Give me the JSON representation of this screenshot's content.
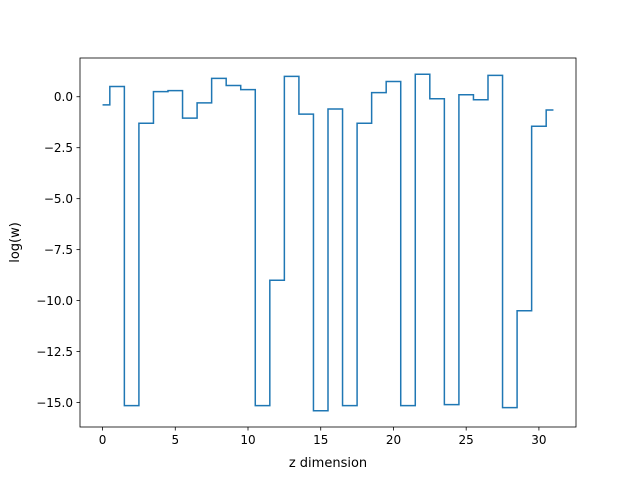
{
  "chart_data": {
    "type": "line",
    "drawstyle": "steps-mid",
    "title": "",
    "xlabel": "z dimension",
    "ylabel": "log(w)",
    "xlim": [
      -1.55,
      32.55
    ],
    "ylim": [
      -16.2,
      1.9
    ],
    "xticks": [
      0,
      5,
      10,
      15,
      20,
      25,
      30
    ],
    "xtick_labels": [
      "0",
      "5",
      "10",
      "15",
      "20",
      "25",
      "30"
    ],
    "yticks": [
      0.0,
      -2.5,
      -5.0,
      -7.5,
      -10.0,
      -12.5,
      -15.0
    ],
    "ytick_labels": [
      "0.0",
      "−2.5",
      "−5.0",
      "−7.5",
      "−10.0",
      "−12.5",
      "−15.0"
    ],
    "grid": false,
    "series": [
      {
        "color": "#1f77b4",
        "x": [
          0,
          1,
          2,
          3,
          4,
          5,
          6,
          7,
          8,
          9,
          10,
          11,
          12,
          13,
          14,
          15,
          16,
          17,
          18,
          19,
          20,
          21,
          22,
          23,
          24,
          25,
          26,
          27,
          28,
          29,
          30,
          31
        ],
        "y": [
          -0.4,
          0.5,
          -15.15,
          -1.3,
          0.25,
          0.3,
          -1.05,
          -0.3,
          0.9,
          0.55,
          0.35,
          -15.15,
          -9.0,
          1.0,
          -0.85,
          -15.4,
          -0.6,
          -15.15,
          -1.3,
          0.2,
          0.75,
          -15.15,
          1.1,
          -0.1,
          -15.1,
          0.1,
          -0.15,
          1.05,
          -15.25,
          -10.5,
          -1.45,
          -0.65
        ]
      }
    ]
  }
}
